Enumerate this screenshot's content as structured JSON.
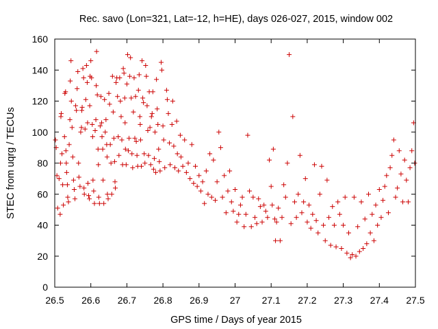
{
  "chart_data": {
    "type": "scatter",
    "title": "Rec. savo (Lon=321, Lat=-12, h=HE), days 026-027, 2015, window 002",
    "xlabel": "GPS time / Days of year 2015",
    "ylabel": "STEC from uqrg / TECUs",
    "xlim": [
      26.5,
      27.5
    ],
    "ylim": [
      0,
      160
    ],
    "xticks": [
      26.5,
      26.6,
      26.7,
      26.8,
      26.9,
      27.0,
      27.1,
      27.2,
      27.3,
      27.4,
      27.5
    ],
    "xtick_labels": [
      "26.5",
      "26.6",
      "26.7",
      "26.8",
      "26.9",
      "27",
      "27.1",
      "27.2",
      "27.3",
      "27.4",
      "27.5"
    ],
    "yticks": [
      0,
      20,
      40,
      60,
      80,
      100,
      120,
      140,
      160
    ],
    "ytick_labels": [
      "0",
      "20",
      "40",
      "60",
      "80",
      "100",
      "120",
      "140",
      "160"
    ],
    "grid": false,
    "legend": "none",
    "marker": "+",
    "color": "#cc0000",
    "series": [
      {
        "points": [
          [
            26.502,
            95
          ],
          [
            26.504,
            90
          ],
          [
            26.506,
            72
          ],
          [
            26.508,
            51
          ],
          [
            26.512,
            70
          ],
          [
            26.515,
            47
          ],
          [
            26.516,
            80
          ],
          [
            26.517,
            110
          ],
          [
            26.518,
            112
          ],
          [
            26.52,
            86
          ],
          [
            26.522,
            66
          ],
          [
            26.524,
            53
          ],
          [
            26.527,
            97
          ],
          [
            26.528,
            125
          ],
          [
            26.53,
            126
          ],
          [
            26.531,
            88
          ],
          [
            26.532,
            80
          ],
          [
            26.533,
            74
          ],
          [
            26.535,
            66
          ],
          [
            26.536,
            58
          ],
          [
            26.538,
            55
          ],
          [
            26.54,
            92
          ],
          [
            26.542,
            108
          ],
          [
            26.543,
            133
          ],
          [
            26.545,
            146
          ],
          [
            26.546,
            120
          ],
          [
            26.548,
            103
          ],
          [
            26.55,
            84
          ],
          [
            26.552,
            69
          ],
          [
            26.554,
            63
          ],
          [
            26.556,
            57
          ],
          [
            26.558,
            117
          ],
          [
            26.56,
            114
          ],
          [
            26.562,
            128
          ],
          [
            26.564,
            139
          ],
          [
            26.566,
            80
          ],
          [
            26.567,
            71
          ],
          [
            26.57,
            65
          ],
          [
            26.572,
            100
          ],
          [
            26.574,
            103
          ],
          [
            26.575,
            114
          ],
          [
            26.576,
            116
          ],
          [
            26.578,
            141
          ],
          [
            26.58,
            135
          ],
          [
            26.581,
            64
          ],
          [
            26.582,
            60
          ],
          [
            26.584,
            102
          ],
          [
            26.586,
            121
          ],
          [
            26.588,
            143
          ],
          [
            26.59,
            132
          ],
          [
            26.591,
            106
          ],
          [
            26.592,
            67
          ],
          [
            26.594,
            59
          ],
          [
            26.596,
            57
          ],
          [
            26.597,
            117
          ],
          [
            26.598,
            136
          ],
          [
            26.6,
            146
          ],
          [
            26.602,
            135
          ],
          [
            26.604,
            105
          ],
          [
            26.605,
            97
          ],
          [
            26.606,
            69
          ],
          [
            26.608,
            62
          ],
          [
            26.61,
            54
          ],
          [
            26.612,
            101
          ],
          [
            26.614,
            108
          ],
          [
            26.615,
            130
          ],
          [
            26.616,
            152
          ],
          [
            26.618,
            124
          ],
          [
            26.62,
            89
          ],
          [
            26.621,
            79
          ],
          [
            26.622,
            58
          ],
          [
            26.624,
            54
          ],
          [
            26.626,
            104
          ],
          [
            26.628,
            123
          ],
          [
            26.63,
            106
          ],
          [
            26.631,
            97
          ],
          [
            26.633,
            89
          ],
          [
            26.634,
            69
          ],
          [
            26.636,
            54
          ],
          [
            26.638,
            121
          ],
          [
            26.64,
            100
          ],
          [
            26.642,
            108
          ],
          [
            26.644,
            92
          ],
          [
            26.645,
            84
          ],
          [
            26.646,
            60
          ],
          [
            26.648,
            57
          ],
          [
            26.65,
            125
          ],
          [
            26.652,
            118
          ],
          [
            26.654,
            92
          ],
          [
            26.656,
            80
          ],
          [
            26.658,
            60
          ],
          [
            26.66,
            136
          ],
          [
            26.662,
            113
          ],
          [
            26.664,
            96
          ],
          [
            26.666,
            81
          ],
          [
            26.667,
            68
          ],
          [
            26.668,
            64
          ],
          [
            26.67,
            132
          ],
          [
            26.672,
            135
          ],
          [
            26.674,
            123
          ],
          [
            26.676,
            97
          ],
          [
            26.678,
            85
          ],
          [
            26.68,
            135
          ],
          [
            26.682,
            120
          ],
          [
            26.684,
            110
          ],
          [
            26.686,
            95
          ],
          [
            26.688,
            79
          ],
          [
            26.69,
            141
          ],
          [
            26.692,
            138
          ],
          [
            26.694,
            122
          ],
          [
            26.695,
            106
          ],
          [
            26.696,
            89
          ],
          [
            26.698,
            79
          ],
          [
            26.7,
            131
          ],
          [
            26.702,
            150
          ],
          [
            26.704,
            88
          ],
          [
            26.706,
            96
          ],
          [
            26.708,
            136
          ],
          [
            26.71,
            148
          ],
          [
            26.712,
            122
          ],
          [
            26.714,
            86
          ],
          [
            26.716,
            77
          ],
          [
            26.718,
            113
          ],
          [
            26.72,
            135
          ],
          [
            26.722,
            96
          ],
          [
            26.724,
            123
          ],
          [
            26.726,
            94
          ],
          [
            26.728,
            85
          ],
          [
            26.73,
            78
          ],
          [
            26.732,
            127
          ],
          [
            26.734,
            137
          ],
          [
            26.736,
            110
          ],
          [
            26.737,
            105
          ],
          [
            26.738,
            95
          ],
          [
            26.74,
            78
          ],
          [
            26.742,
            146
          ],
          [
            26.744,
            122
          ],
          [
            26.746,
            119
          ],
          [
            26.748,
            86
          ],
          [
            26.75,
            80
          ],
          [
            26.752,
            143
          ],
          [
            26.754,
            136
          ],
          [
            26.756,
            117
          ],
          [
            26.758,
            101
          ],
          [
            26.76,
            85
          ],
          [
            26.762,
            126
          ],
          [
            26.764,
            103
          ],
          [
            26.766,
            79
          ],
          [
            26.768,
            110
          ],
          [
            26.77,
            112
          ],
          [
            26.772,
            126
          ],
          [
            26.774,
            76
          ],
          [
            26.776,
            83
          ],
          [
            26.778,
            100
          ],
          [
            26.78,
            74
          ],
          [
            26.782,
            134
          ],
          [
            26.784,
            115
          ],
          [
            26.786,
            105
          ],
          [
            26.788,
            89
          ],
          [
            26.79,
            81
          ],
          [
            26.792,
            75
          ],
          [
            26.795,
            145
          ],
          [
            26.797,
            140
          ],
          [
            26.8,
            104
          ],
          [
            26.802,
            95
          ],
          [
            26.805,
            77
          ],
          [
            26.81,
            127
          ],
          [
            26.812,
            121
          ],
          [
            26.815,
            112
          ],
          [
            26.818,
            93
          ],
          [
            26.82,
            79
          ],
          [
            26.825,
            105
          ],
          [
            26.827,
            120
          ],
          [
            26.83,
            91
          ],
          [
            26.833,
            77
          ],
          [
            26.838,
            107
          ],
          [
            26.84,
            86
          ],
          [
            26.843,
            75
          ],
          [
            26.848,
            98
          ],
          [
            26.85,
            84
          ],
          [
            26.855,
            78
          ],
          [
            26.86,
            95
          ],
          [
            26.865,
            74
          ],
          [
            26.87,
            80
          ],
          [
            26.875,
            70
          ],
          [
            26.88,
            92
          ],
          [
            26.885,
            67
          ],
          [
            26.89,
            78
          ],
          [
            26.895,
            65
          ],
          [
            26.9,
            72
          ],
          [
            26.905,
            62
          ],
          [
            26.91,
            68
          ],
          [
            26.915,
            54
          ],
          [
            26.92,
            75
          ],
          [
            26.925,
            60
          ],
          [
            26.93,
            86
          ],
          [
            26.935,
            58
          ],
          [
            26.94,
            82
          ],
          [
            26.945,
            56
          ],
          [
            26.95,
            68
          ],
          [
            26.955,
            100
          ],
          [
            26.96,
            90
          ],
          [
            26.965,
            58
          ],
          [
            26.97,
            72
          ],
          [
            26.975,
            48
          ],
          [
            26.98,
            62
          ],
          [
            26.985,
            75
          ],
          [
            26.99,
            55
          ],
          [
            26.995,
            49
          ],
          [
            27.0,
            63
          ],
          [
            27.005,
            42
          ],
          [
            27.01,
            47
          ],
          [
            27.015,
            53
          ],
          [
            27.02,
            58
          ],
          [
            27.025,
            39
          ],
          [
            27.03,
            47
          ],
          [
            27.035,
            98
          ],
          [
            27.04,
            62
          ],
          [
            27.045,
            39
          ],
          [
            27.05,
            58
          ],
          [
            27.055,
            45
          ],
          [
            27.06,
            41
          ],
          [
            27.065,
            57
          ],
          [
            27.07,
            52
          ],
          [
            27.075,
            42
          ],
          [
            27.08,
            53
          ],
          [
            27.085,
            49
          ],
          [
            27.09,
            45
          ],
          [
            27.095,
            82
          ],
          [
            27.1,
            65
          ],
          [
            27.103,
            53
          ],
          [
            27.106,
            89
          ],
          [
            27.11,
            44
          ],
          [
            27.112,
            30
          ],
          [
            27.115,
            42
          ],
          [
            27.12,
            51
          ],
          [
            27.125,
            30
          ],
          [
            27.13,
            45
          ],
          [
            27.135,
            66
          ],
          [
            27.14,
            58
          ],
          [
            27.145,
            80
          ],
          [
            27.15,
            150
          ],
          [
            27.155,
            41
          ],
          [
            27.16,
            110
          ],
          [
            27.165,
            55
          ],
          [
            27.17,
            45
          ],
          [
            27.175,
            60
          ],
          [
            27.18,
            85
          ],
          [
            27.185,
            48
          ],
          [
            27.19,
            55
          ],
          [
            27.195,
            70
          ],
          [
            27.2,
            42
          ],
          [
            27.205,
            53
          ],
          [
            27.21,
            38
          ],
          [
            27.215,
            47
          ],
          [
            27.22,
            79
          ],
          [
            27.225,
            43
          ],
          [
            27.23,
            35
          ],
          [
            27.235,
            60
          ],
          [
            27.24,
            78
          ],
          [
            27.245,
            40
          ],
          [
            27.25,
            30
          ],
          [
            27.255,
            69
          ],
          [
            27.26,
            45
          ],
          [
            27.265,
            27
          ],
          [
            27.27,
            52
          ],
          [
            27.275,
            40
          ],
          [
            27.28,
            26
          ],
          [
            27.285,
            55
          ],
          [
            27.29,
            47
          ],
          [
            27.295,
            25
          ],
          [
            27.3,
            40
          ],
          [
            27.305,
            58
          ],
          [
            27.31,
            22
          ],
          [
            27.315,
            35
          ],
          [
            27.32,
            19
          ],
          [
            27.325,
            21
          ],
          [
            27.33,
            58
          ],
          [
            27.335,
            20
          ],
          [
            27.34,
            39
          ],
          [
            27.345,
            23
          ],
          [
            27.35,
            55
          ],
          [
            27.355,
            25
          ],
          [
            27.36,
            44
          ],
          [
            27.365,
            28
          ],
          [
            27.37,
            60
          ],
          [
            27.375,
            35
          ],
          [
            27.38,
            47
          ],
          [
            27.385,
            30
          ],
          [
            27.39,
            53
          ],
          [
            27.395,
            40
          ],
          [
            27.4,
            63
          ],
          [
            27.405,
            45
          ],
          [
            27.41,
            56
          ],
          [
            27.415,
            65
          ],
          [
            27.42,
            72
          ],
          [
            27.425,
            48
          ],
          [
            27.43,
            77
          ],
          [
            27.435,
            85
          ],
          [
            27.44,
            95
          ],
          [
            27.445,
            58
          ],
          [
            27.45,
            64
          ],
          [
            27.455,
            88
          ],
          [
            27.46,
            73
          ],
          [
            27.465,
            55
          ],
          [
            27.47,
            82
          ],
          [
            27.475,
            69
          ],
          [
            27.48,
            55
          ],
          [
            27.485,
            77
          ],
          [
            27.49,
            88
          ],
          [
            27.495,
            106
          ],
          [
            27.498,
            80
          ]
        ]
      }
    ]
  }
}
